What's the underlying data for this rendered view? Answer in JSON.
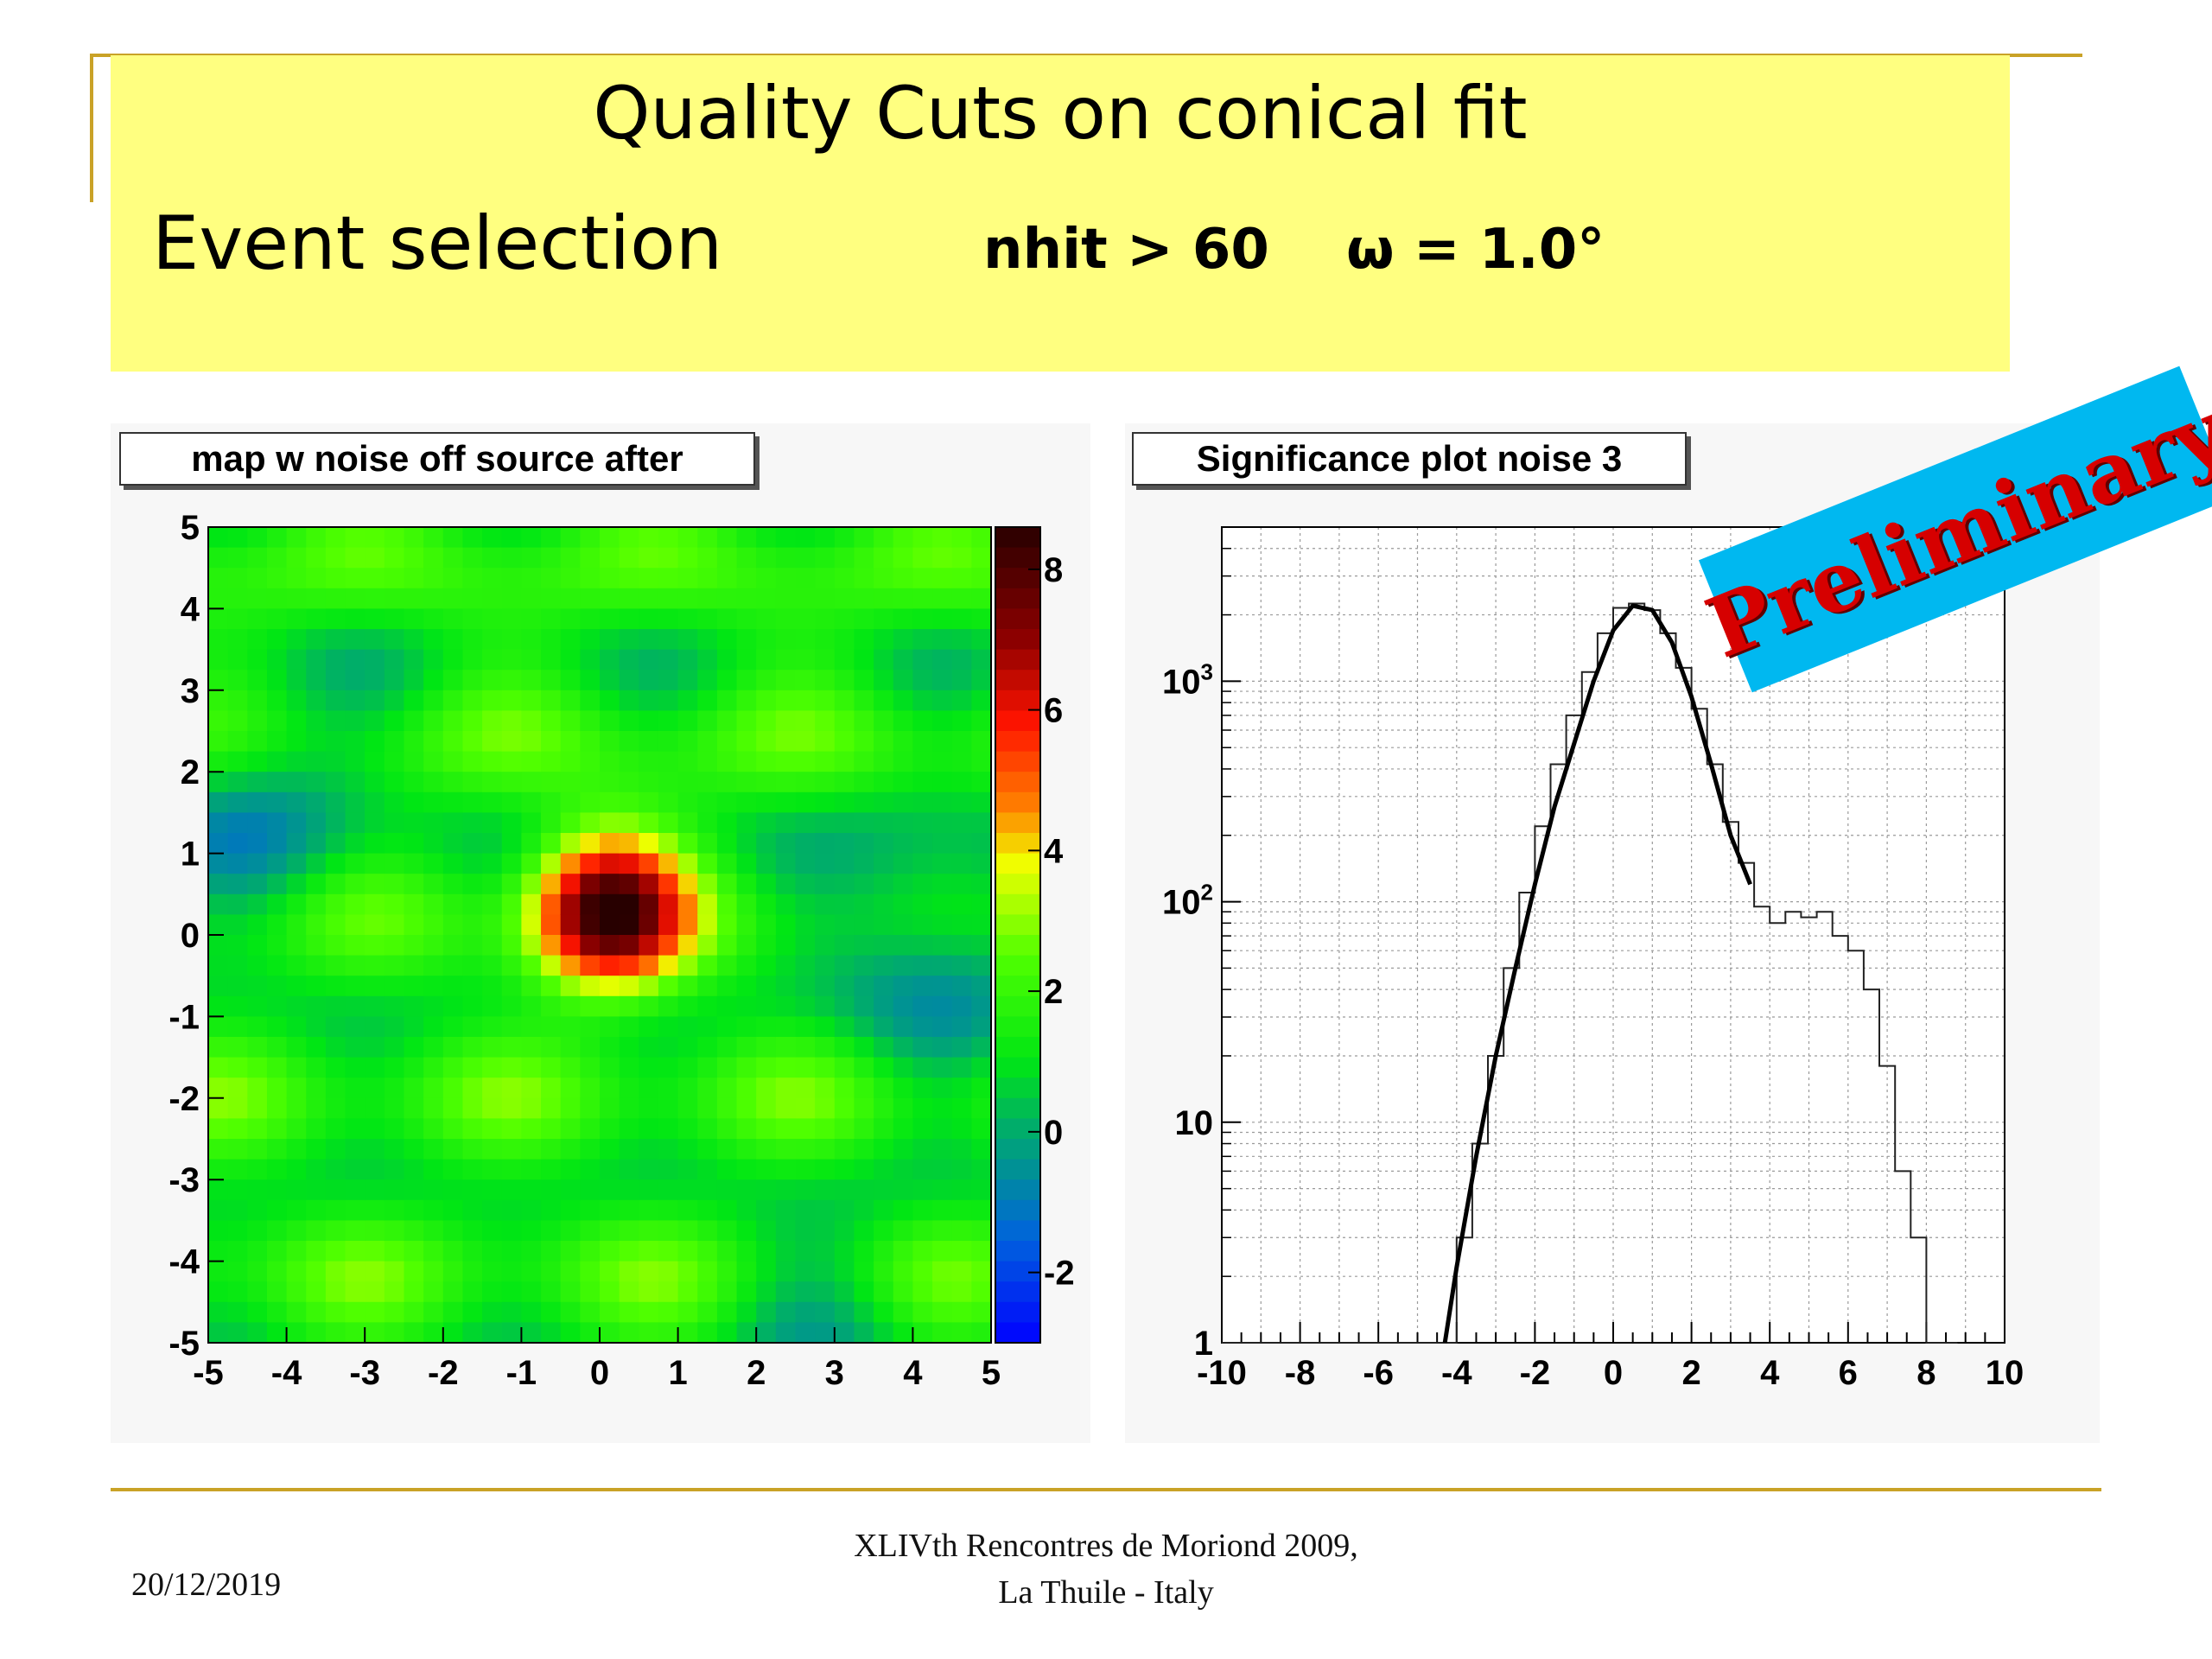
{
  "slide": {
    "title": "Quality Cuts on conical fit",
    "subtitle": "Event selection",
    "criteria": "nhit > 60    ω = 1.0°",
    "banner": "Preliminary",
    "footer_date": "20/12/2019",
    "footer_line1": "XLIVth Rencontres de Moriond 2009,",
    "footer_line2": "La Thuile - Italy"
  },
  "chart_data": [
    {
      "type": "heatmap",
      "title": "map w noise off source after",
      "x_ticks": [
        "-5",
        "-4",
        "-3",
        "-2",
        "-1",
        "0",
        "1",
        "2",
        "3",
        "4",
        "5"
      ],
      "y_ticks": [
        "5",
        "4",
        "3",
        "2",
        "1",
        "0",
        "-1",
        "-2",
        "-3",
        "-4",
        "-5"
      ],
      "xlim": [
        -5,
        5
      ],
      "ylim": [
        -5,
        5
      ],
      "zlim": [
        -3,
        8.6
      ],
      "colorbar_ticks": [
        "8",
        "6",
        "4",
        "2",
        "0",
        "-2"
      ],
      "colorbar_values": [
        8,
        6,
        4,
        2,
        0,
        -2
      ],
      "hotspot": {
        "x": 0.1,
        "y": 0.3,
        "peak": 8
      },
      "background_level": 1.5
    },
    {
      "type": "line",
      "title": "Significance plot noise 3",
      "x_ticks": [
        "-10",
        "-8",
        "-6",
        "-4",
        "-2",
        "0",
        "2",
        "4",
        "6",
        "8",
        "10"
      ],
      "y_ticks": [
        "10^3",
        "10^2",
        "10",
        "1"
      ],
      "y_log": true,
      "grid": true,
      "xlim": [
        -10,
        10
      ],
      "ylim": [
        1,
        5000
      ],
      "histogram": {
        "x": [
          -3.8,
          -3.4,
          -3.0,
          -2.6,
          -2.2,
          -1.8,
          -1.4,
          -1.0,
          -0.6,
          -0.2,
          0.2,
          0.6,
          1.0,
          1.4,
          1.8,
          2.2,
          2.6,
          3.0,
          3.4,
          3.8,
          4.2,
          4.6,
          5.0,
          5.4,
          5.8,
          6.2,
          6.6,
          7.0,
          7.4,
          7.8,
          8.2,
          8.6
        ],
        "counts": [
          3,
          8,
          20,
          50,
          110,
          220,
          420,
          700,
          1100,
          1650,
          2150,
          2250,
          2100,
          1650,
          1150,
          750,
          420,
          230,
          150,
          95,
          80,
          90,
          85,
          90,
          70,
          60,
          40,
          18,
          6,
          3,
          1,
          1
        ]
      },
      "fit": {
        "x": [
          -4.3,
          -4.0,
          -3.5,
          -3.0,
          -2.5,
          -2.0,
          -1.5,
          -1.0,
          -0.5,
          0.0,
          0.5,
          1.0,
          1.5,
          2.0,
          2.5,
          3.0,
          3.5
        ],
        "y": [
          1,
          2.2,
          7,
          20,
          50,
          120,
          270,
          520,
          1000,
          1700,
          2200,
          2100,
          1500,
          850,
          420,
          200,
          120
        ]
      }
    }
  ]
}
